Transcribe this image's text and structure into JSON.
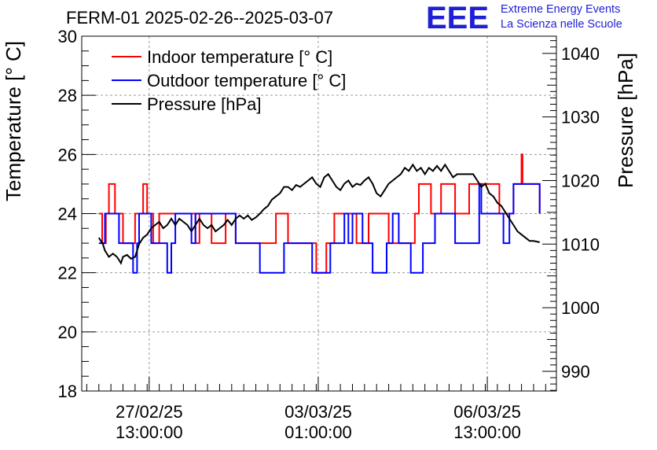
{
  "header": {
    "title": "FERM-01 2025-02-26--2025-03-07",
    "logo_letters": "EEE",
    "logo_line1": "Extreme Energy Events",
    "logo_line2": "La Scienza nelle Scuole"
  },
  "colors": {
    "indoor": "#ff0000",
    "outdoor": "#0000ff",
    "pressure": "#000000",
    "logo": "#1f1fd6"
  },
  "chart_data": {
    "type": "line",
    "title": "FERM-01 2025-02-26--2025-03-07",
    "ylabel": "Temperature [° C]",
    "y2label": "Pressure [hPa]",
    "ylim": [
      18,
      30
    ],
    "y2lim": [
      986.9,
      1042.7
    ],
    "xlim": [
      "2025-02-26 03:30",
      "2025-03-07 23:20"
    ],
    "yticks": [
      "18",
      "20",
      "22",
      "24",
      "26",
      "28",
      "30"
    ],
    "y2ticks": [
      "990",
      "1000",
      "1010",
      "1020",
      "1030",
      "1040"
    ],
    "xticks": [
      {
        "x": "2025-02-27 13:00",
        "line1": "27/02/25",
        "line2": "13:00:00"
      },
      {
        "x": "2025-03-03 01:00",
        "line1": "03/03/25",
        "line2": "01:00:00"
      },
      {
        "x": "2025-03-06 13:00",
        "line1": "06/03/25",
        "line2": "13:00:00"
      }
    ],
    "grid": true,
    "legend_position": "top-left",
    "series": [
      {
        "name": "Indoor temperature [° C]",
        "axis": "left",
        "points": [
          [
            "2025-02-26 12:00",
            24
          ],
          [
            "2025-02-26 13:40",
            24
          ],
          [
            "2025-02-26 13:40",
            23
          ],
          [
            "2025-02-26 15:30",
            23
          ],
          [
            "2025-02-26 15:30",
            24
          ],
          [
            "2025-02-26 17:00",
            24
          ],
          [
            "2025-02-26 17:00",
            25
          ],
          [
            "2025-02-26 20:00",
            25
          ],
          [
            "2025-02-26 20:00",
            24
          ],
          [
            "2025-02-27 00:00",
            24
          ],
          [
            "2025-02-27 00:00",
            23
          ],
          [
            "2025-02-27 06:00",
            23
          ],
          [
            "2025-02-27 06:00",
            24
          ],
          [
            "2025-02-27 10:00",
            24
          ],
          [
            "2025-02-27 10:00",
            25
          ],
          [
            "2025-02-27 12:00",
            25
          ],
          [
            "2025-02-27 12:00",
            24
          ],
          [
            "2025-02-27 15:00",
            24
          ],
          [
            "2025-02-27 15:00",
            23
          ],
          [
            "2025-02-27 18:00",
            23
          ],
          [
            "2025-02-27 18:00",
            24
          ],
          [
            "2025-02-28 12:00",
            24
          ],
          [
            "2025-02-28 12:00",
            23
          ],
          [
            "2025-02-28 14:00",
            23
          ],
          [
            "2025-02-28 14:00",
            24
          ],
          [
            "2025-02-28 20:00",
            24
          ],
          [
            "2025-02-28 20:00",
            23
          ],
          [
            "2025-03-01 03:00",
            23
          ],
          [
            "2025-03-01 03:00",
            24
          ],
          [
            "2025-03-01 08:00",
            24
          ],
          [
            "2025-03-01 08:00",
            23
          ],
          [
            "2025-03-02 04:00",
            23
          ],
          [
            "2025-03-02 04:00",
            24
          ],
          [
            "2025-03-02 10:00",
            24
          ],
          [
            "2025-03-02 10:00",
            23
          ],
          [
            "2025-03-03 00:00",
            23
          ],
          [
            "2025-03-03 00:00",
            22
          ],
          [
            "2025-03-03 05:00",
            22
          ],
          [
            "2025-03-03 05:00",
            23
          ],
          [
            "2025-03-03 09:00",
            23
          ],
          [
            "2025-03-03 09:00",
            24
          ],
          [
            "2025-03-03 20:00",
            24
          ],
          [
            "2025-03-03 20:00",
            23
          ],
          [
            "2025-03-04 02:00",
            23
          ],
          [
            "2025-03-04 02:00",
            24
          ],
          [
            "2025-03-04 12:00",
            24
          ],
          [
            "2025-03-04 12:00",
            23
          ],
          [
            "2025-03-05 01:00",
            23
          ],
          [
            "2025-03-05 01:00",
            24
          ],
          [
            "2025-03-05 03:00",
            24
          ],
          [
            "2025-03-05 03:00",
            25
          ],
          [
            "2025-03-05 09:00",
            25
          ],
          [
            "2025-03-05 09:00",
            24
          ],
          [
            "2025-03-05 14:00",
            24
          ],
          [
            "2025-03-05 14:00",
            25
          ],
          [
            "2025-03-05 21:00",
            25
          ],
          [
            "2025-03-05 21:00",
            24
          ],
          [
            "2025-03-06 04:00",
            24
          ],
          [
            "2025-03-06 04:00",
            25
          ],
          [
            "2025-03-06 19:00",
            25
          ],
          [
            "2025-03-06 19:00",
            24
          ],
          [
            "2025-03-07 02:00",
            24
          ],
          [
            "2025-03-07 02:00",
            25
          ],
          [
            "2025-03-07 06:00",
            25
          ],
          [
            "2025-03-07 06:00",
            26
          ],
          [
            "2025-03-07 06:30",
            26
          ],
          [
            "2025-03-07 06:30",
            25
          ],
          [
            "2025-03-07 15:00",
            25
          ],
          [
            "2025-03-07 15:00",
            24
          ]
        ]
      },
      {
        "name": "Outdoor temperature [° C]",
        "axis": "left",
        "points": [
          [
            "2025-02-26 12:00",
            23
          ],
          [
            "2025-02-26 15:00",
            23
          ],
          [
            "2025-02-26 15:00",
            24
          ],
          [
            "2025-02-26 22:00",
            24
          ],
          [
            "2025-02-26 22:00",
            23
          ],
          [
            "2025-02-27 05:00",
            23
          ],
          [
            "2025-02-27 05:00",
            22
          ],
          [
            "2025-02-27 07:00",
            22
          ],
          [
            "2025-02-27 07:00",
            23
          ],
          [
            "2025-02-27 08:00",
            23
          ],
          [
            "2025-02-27 08:00",
            24
          ],
          [
            "2025-02-27 14:00",
            24
          ],
          [
            "2025-02-27 14:00",
            23
          ],
          [
            "2025-02-27 22:00",
            23
          ],
          [
            "2025-02-27 22:00",
            22
          ],
          [
            "2025-02-28 00:00",
            22
          ],
          [
            "2025-02-28 00:00",
            23
          ],
          [
            "2025-02-28 02:00",
            23
          ],
          [
            "2025-02-28 02:00",
            24
          ],
          [
            "2025-02-28 10:00",
            24
          ],
          [
            "2025-02-28 10:00",
            23
          ],
          [
            "2025-02-28 12:00",
            23
          ],
          [
            "2025-02-28 12:00",
            24
          ],
          [
            "2025-03-01 08:00",
            24
          ],
          [
            "2025-03-01 08:00",
            23
          ],
          [
            "2025-03-01 20:00",
            23
          ],
          [
            "2025-03-01 20:00",
            22
          ],
          [
            "2025-03-02 08:00",
            22
          ],
          [
            "2025-03-02 08:00",
            23
          ],
          [
            "2025-03-02 22:00",
            23
          ],
          [
            "2025-03-02 22:00",
            22
          ],
          [
            "2025-03-03 07:00",
            22
          ],
          [
            "2025-03-03 07:00",
            23
          ],
          [
            "2025-03-03 14:00",
            23
          ],
          [
            "2025-03-03 14:00",
            24
          ],
          [
            "2025-03-03 16:00",
            24
          ],
          [
            "2025-03-03 16:00",
            23
          ],
          [
            "2025-03-03 18:00",
            23
          ],
          [
            "2025-03-03 18:00",
            24
          ],
          [
            "2025-03-03 23:00",
            24
          ],
          [
            "2025-03-03 23:00",
            23
          ],
          [
            "2025-03-04 04:00",
            23
          ],
          [
            "2025-03-04 04:00",
            22
          ],
          [
            "2025-03-04 11:00",
            22
          ],
          [
            "2025-03-04 11:00",
            23
          ],
          [
            "2025-03-04 14:00",
            23
          ],
          [
            "2025-03-04 14:00",
            24
          ],
          [
            "2025-03-04 17:00",
            24
          ],
          [
            "2025-03-04 17:00",
            23
          ],
          [
            "2025-03-04 23:00",
            23
          ],
          [
            "2025-03-04 23:00",
            22
          ],
          [
            "2025-03-05 05:00",
            22
          ],
          [
            "2025-03-05 05:00",
            23
          ],
          [
            "2025-03-05 11:00",
            23
          ],
          [
            "2025-03-05 11:00",
            24
          ],
          [
            "2025-03-05 21:00",
            24
          ],
          [
            "2025-03-05 21:00",
            23
          ],
          [
            "2025-03-06 09:00",
            23
          ],
          [
            "2025-03-06 09:00",
            25
          ],
          [
            "2025-03-06 10:00",
            25
          ],
          [
            "2025-03-06 10:00",
            24
          ],
          [
            "2025-03-06 21:00",
            24
          ],
          [
            "2025-03-06 21:00",
            23
          ],
          [
            "2025-03-07 00:00",
            23
          ],
          [
            "2025-03-07 00:00",
            24
          ],
          [
            "2025-03-07 02:00",
            24
          ],
          [
            "2025-03-07 02:00",
            25
          ],
          [
            "2025-03-07 15:00",
            25
          ],
          [
            "2025-03-07 15:00",
            24
          ]
        ]
      },
      {
        "name": "Pressure [hPa]",
        "axis": "right",
        "points": [
          [
            "2025-02-26 12:00",
            1011.0
          ],
          [
            "2025-02-26 14:00",
            1010.0
          ],
          [
            "2025-02-26 15:00",
            1009.0
          ],
          [
            "2025-02-26 17:00",
            1008.0
          ],
          [
            "2025-02-26 19:00",
            1008.5
          ],
          [
            "2025-02-26 21:00",
            1008.0
          ],
          [
            "2025-02-26 22:00",
            1007.5
          ],
          [
            "2025-02-26 23:00",
            1007.0
          ],
          [
            "2025-02-27 00:00",
            1008.0
          ],
          [
            "2025-02-27 02:00",
            1008.3
          ],
          [
            "2025-02-27 04:00",
            1007.7
          ],
          [
            "2025-02-27 06:00",
            1008.0
          ],
          [
            "2025-02-27 08:00",
            1010.0
          ],
          [
            "2025-02-27 10:00",
            1011.0
          ],
          [
            "2025-02-27 12:00",
            1011.5
          ],
          [
            "2025-02-27 14:00",
            1012.5
          ],
          [
            "2025-02-27 16:00",
            1013.0
          ],
          [
            "2025-02-27 18:00",
            1013.5
          ],
          [
            "2025-02-27 20:00",
            1012.5
          ],
          [
            "2025-02-27 22:00",
            1013.0
          ],
          [
            "2025-02-28 00:00",
            1014.0
          ],
          [
            "2025-02-28 02:00",
            1013.0
          ],
          [
            "2025-02-28 04:00",
            1014.0
          ],
          [
            "2025-02-28 06:00",
            1013.5
          ],
          [
            "2025-02-28 08:00",
            1013.0
          ],
          [
            "2025-02-28 10:00",
            1012.0
          ],
          [
            "2025-02-28 12:00",
            1013.0
          ],
          [
            "2025-02-28 14:00",
            1014.0
          ],
          [
            "2025-02-28 16:00",
            1013.0
          ],
          [
            "2025-02-28 18:00",
            1012.5
          ],
          [
            "2025-02-28 20:00",
            1013.0
          ],
          [
            "2025-02-28 22:00",
            1012.0
          ],
          [
            "2025-03-01 00:00",
            1012.5
          ],
          [
            "2025-03-01 02:00",
            1013.0
          ],
          [
            "2025-03-01 04:00",
            1013.8
          ],
          [
            "2025-03-01 06:00",
            1013.0
          ],
          [
            "2025-03-01 08:00",
            1014.0
          ],
          [
            "2025-03-01 10:00",
            1014.5
          ],
          [
            "2025-03-01 12:00",
            1014.0
          ],
          [
            "2025-03-01 14:00",
            1014.5
          ],
          [
            "2025-03-01 16:00",
            1013.8
          ],
          [
            "2025-03-01 18:00",
            1014.2
          ],
          [
            "2025-03-01 20:00",
            1014.8
          ],
          [
            "2025-03-01 22:00",
            1015.5
          ],
          [
            "2025-03-02 00:00",
            1016.0
          ],
          [
            "2025-03-02 02:00",
            1017.0
          ],
          [
            "2025-03-02 04:00",
            1017.5
          ],
          [
            "2025-03-02 06:00",
            1018.0
          ],
          [
            "2025-03-02 08:00",
            1019.0
          ],
          [
            "2025-03-02 10:00",
            1019.0
          ],
          [
            "2025-03-02 12:00",
            1018.5
          ],
          [
            "2025-03-02 14:00",
            1019.3
          ],
          [
            "2025-03-02 16:00",
            1019.0
          ],
          [
            "2025-03-02 18:00",
            1019.5
          ],
          [
            "2025-03-02 20:00",
            1020.0
          ],
          [
            "2025-03-02 22:00",
            1020.5
          ],
          [
            "2025-03-03 00:00",
            1019.5
          ],
          [
            "2025-03-03 02:00",
            1019.0
          ],
          [
            "2025-03-03 04:00",
            1020.5
          ],
          [
            "2025-03-03 06:00",
            1021.0
          ],
          [
            "2025-03-03 08:00",
            1020.0
          ],
          [
            "2025-03-03 10:00",
            1019.0
          ],
          [
            "2025-03-03 12:00",
            1018.5
          ],
          [
            "2025-03-03 14:00",
            1019.5
          ],
          [
            "2025-03-03 16:00",
            1020.0
          ],
          [
            "2025-03-03 18:00",
            1019.0
          ],
          [
            "2025-03-03 20:00",
            1019.5
          ],
          [
            "2025-03-03 22:00",
            1019.3
          ],
          [
            "2025-03-04 00:00",
            1020.0
          ],
          [
            "2025-03-04 02:00",
            1020.5
          ],
          [
            "2025-03-04 04:00",
            1019.5
          ],
          [
            "2025-03-04 06:00",
            1018.0
          ],
          [
            "2025-03-04 08:00",
            1017.5
          ],
          [
            "2025-03-04 10:00",
            1018.5
          ],
          [
            "2025-03-04 12:00",
            1019.5
          ],
          [
            "2025-03-04 14:00",
            1020.0
          ],
          [
            "2025-03-04 16:00",
            1020.5
          ],
          [
            "2025-03-04 18:00",
            1021.0
          ],
          [
            "2025-03-04 20:00",
            1022.0
          ],
          [
            "2025-03-04 22:00",
            1021.5
          ],
          [
            "2025-03-05 00:00",
            1022.5
          ],
          [
            "2025-03-05 02:00",
            1021.5
          ],
          [
            "2025-03-05 04:00",
            1022.0
          ],
          [
            "2025-03-05 06:00",
            1021.0
          ],
          [
            "2025-03-05 08:00",
            1022.0
          ],
          [
            "2025-03-05 10:00",
            1021.5
          ],
          [
            "2025-03-05 12:00",
            1022.3
          ],
          [
            "2025-03-05 14:00",
            1021.5
          ],
          [
            "2025-03-05 16:00",
            1022.5
          ],
          [
            "2025-03-05 18:00",
            1021.5
          ],
          [
            "2025-03-05 20:00",
            1020.5
          ],
          [
            "2025-03-05 22:00",
            1021.0
          ],
          [
            "2025-03-06 00:00",
            1021.0
          ],
          [
            "2025-03-06 04:00",
            1021.0
          ],
          [
            "2025-03-06 06:00",
            1021.0
          ],
          [
            "2025-03-06 08:00",
            1020.0
          ],
          [
            "2025-03-06 10:00",
            1019.0
          ],
          [
            "2025-03-06 12:00",
            1019.5
          ],
          [
            "2025-03-06 14:00",
            1018.0
          ],
          [
            "2025-03-06 16:00",
            1017.5
          ],
          [
            "2025-03-06 18:00",
            1016.5
          ],
          [
            "2025-03-06 20:00",
            1016.0
          ],
          [
            "2025-03-06 22:00",
            1015.0
          ],
          [
            "2025-03-07 00:00",
            1014.0
          ],
          [
            "2025-03-07 02:00",
            1013.0
          ],
          [
            "2025-03-07 04:00",
            1012.0
          ],
          [
            "2025-03-07 06:00",
            1011.5
          ],
          [
            "2025-03-07 08:00",
            1011.0
          ],
          [
            "2025-03-07 10:00",
            1010.5
          ],
          [
            "2025-03-07 12:00",
            1010.5
          ],
          [
            "2025-03-07 15:00",
            1010.3
          ]
        ]
      }
    ]
  }
}
